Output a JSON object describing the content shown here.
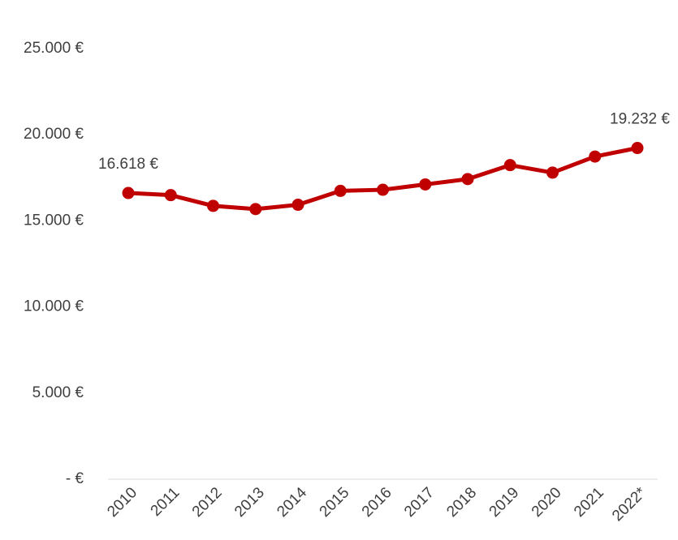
{
  "chart_data": {
    "type": "line",
    "categories": [
      "2010",
      "2011",
      "2012",
      "2013",
      "2014",
      "2015",
      "2016",
      "2017",
      "2018",
      "2019",
      "2020",
      "2021",
      "2022*"
    ],
    "series": [
      {
        "name": null,
        "color": "#c00000",
        "values": [
          16618,
          16494,
          15871,
          15685,
          15934,
          16742,
          16805,
          17116,
          17427,
          18236,
          17800,
          18734,
          19232
        ],
        "value_labels": [
          "16.618 €",
          null,
          null,
          null,
          null,
          null,
          null,
          null,
          null,
          null,
          null,
          null,
          "19.232 €"
        ]
      }
    ],
    "ylim": [
      0,
      25000
    ],
    "yticks": [
      {
        "value": 0,
        "label": "-   €"
      },
      {
        "value": 5000,
        "label": "5.000 €"
      },
      {
        "value": 10000,
        "label": "10.000 €"
      },
      {
        "value": 15000,
        "label": "15.000 €"
      },
      {
        "value": 20000,
        "label": "20.000 €"
      },
      {
        "value": 25000,
        "label": "25.000 €"
      }
    ],
    "grid": false
  }
}
